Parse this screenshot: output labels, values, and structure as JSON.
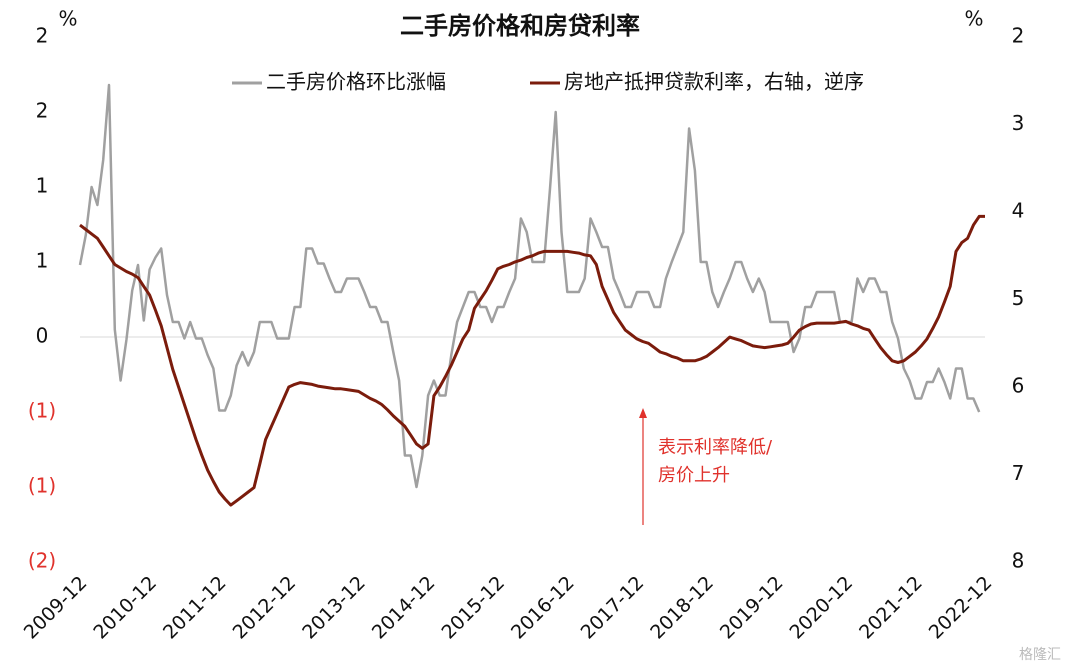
{
  "chart_data": {
    "type": "line",
    "title": "二手房价格和房贷利率",
    "y_unit": "%",
    "y2_unit": "%",
    "categories": [
      "2009-12",
      null,
      null,
      null,
      null,
      null,
      null,
      null,
      null,
      null,
      null,
      null,
      "2010-12",
      null,
      null,
      null,
      null,
      null,
      null,
      null,
      null,
      null,
      null,
      null,
      "2011-12",
      null,
      null,
      null,
      null,
      null,
      null,
      null,
      null,
      null,
      null,
      null,
      "2012-12",
      null,
      null,
      null,
      null,
      null,
      null,
      null,
      null,
      null,
      null,
      null,
      "2013-12",
      null,
      null,
      null,
      null,
      null,
      null,
      null,
      null,
      null,
      null,
      null,
      "2014-12",
      null,
      null,
      null,
      null,
      null,
      null,
      null,
      null,
      null,
      null,
      null,
      "2015-12",
      null,
      null,
      null,
      null,
      null,
      null,
      null,
      null,
      null,
      null,
      null,
      "2016-12",
      null,
      null,
      null,
      null,
      null,
      null,
      null,
      null,
      null,
      null,
      null,
      "2017-12",
      null,
      null,
      null,
      null,
      null,
      null,
      null,
      null,
      null,
      null,
      null,
      "2018-12",
      null,
      null,
      null,
      null,
      null,
      null,
      null,
      null,
      null,
      null,
      null,
      "2019-12",
      null,
      null,
      null,
      null,
      null,
      null,
      null,
      null,
      null,
      null,
      null,
      "2020-12",
      null,
      null,
      null,
      null,
      null,
      null,
      null,
      null,
      null,
      null,
      null,
      "2021-12",
      null,
      null,
      null,
      null,
      null,
      null,
      null,
      null,
      null,
      null,
      null,
      "2022-12"
    ],
    "series": [
      {
        "name": "二手房价格环比涨幅",
        "color": "#a0a0a0",
        "axis": "y",
        "values": [
          0.48,
          0.68,
          1.0,
          0.88,
          1.18,
          1.68,
          0.05,
          -0.29,
          -0.02,
          0.31,
          0.48,
          0.11,
          0.45,
          0.53,
          0.59,
          0.28,
          0.1,
          0.1,
          -0.01,
          0.1,
          -0.01,
          -0.01,
          -0.12,
          -0.21,
          -0.49,
          -0.49,
          -0.39,
          -0.19,
          -0.1,
          -0.19,
          -0.1,
          0.1,
          0.1,
          0.1,
          -0.01,
          -0.01,
          -0.01,
          0.2,
          0.2,
          0.59,
          0.59,
          0.49,
          0.49,
          0.39,
          0.3,
          0.3,
          0.39,
          0.39,
          0.39,
          0.3,
          0.2,
          0.2,
          0.1,
          0.1,
          -0.1,
          -0.29,
          -0.79,
          -0.79,
          -1.0,
          -0.79,
          -0.39,
          -0.29,
          -0.39,
          -0.39,
          -0.12,
          0.1,
          0.2,
          0.3,
          0.3,
          0.2,
          0.2,
          0.1,
          0.2,
          0.2,
          0.3,
          0.39,
          0.79,
          0.7,
          0.5,
          0.5,
          0.5,
          0.98,
          1.5,
          0.7,
          0.3,
          0.3,
          0.3,
          0.39,
          0.79,
          0.7,
          0.6,
          0.6,
          0.39,
          0.3,
          0.2,
          0.2,
          0.3,
          0.3,
          0.3,
          0.2,
          0.2,
          0.39,
          0.5,
          0.6,
          0.7,
          1.39,
          1.11,
          0.5,
          0.5,
          0.3,
          0.2,
          0.3,
          0.39,
          0.5,
          0.5,
          0.39,
          0.3,
          0.39,
          0.3,
          0.1,
          0.1,
          0.1,
          0.1,
          -0.1,
          -0.01,
          0.2,
          0.2,
          0.3,
          0.3,
          0.3,
          0.3,
          0.1,
          0.1,
          0.1,
          0.39,
          0.3,
          0.39,
          0.39,
          0.3,
          0.3,
          0.1,
          -0.01,
          -0.21,
          -0.29,
          -0.41,
          -0.41,
          -0.3,
          -0.3,
          -0.21,
          -0.3,
          -0.41,
          -0.21,
          -0.21,
          -0.41,
          -0.41,
          -0.5,
          null
        ]
      },
      {
        "name": "房地产抵押贷款利率，右轴，逆序",
        "color": "#7b1c0c",
        "axis": "y2",
        "values": [
          4.15,
          4.2,
          4.25,
          4.3,
          4.4,
          4.5,
          4.6,
          4.64,
          4.68,
          4.71,
          4.75,
          4.85,
          4.95,
          5.12,
          5.3,
          5.55,
          5.8,
          6.0,
          6.2,
          6.4,
          6.6,
          6.78,
          6.95,
          7.08,
          7.2,
          7.28,
          7.35,
          7.3,
          7.25,
          7.2,
          7.15,
          6.88,
          6.6,
          6.45,
          6.3,
          6.15,
          6.0,
          5.97,
          5.95,
          5.96,
          5.97,
          5.99,
          6.0,
          6.01,
          6.02,
          6.02,
          6.03,
          6.04,
          6.05,
          6.09,
          6.13,
          6.16,
          6.2,
          6.26,
          6.33,
          6.39,
          6.45,
          6.55,
          6.65,
          6.7,
          6.65,
          6.1,
          6.0,
          5.88,
          5.75,
          5.6,
          5.45,
          5.35,
          5.1,
          5.0,
          4.9,
          4.78,
          4.65,
          4.62,
          4.6,
          4.57,
          4.55,
          4.52,
          4.5,
          4.47,
          4.45,
          4.45,
          4.45,
          4.45,
          4.45,
          4.46,
          4.47,
          4.49,
          4.5,
          4.6,
          4.85,
          5.0,
          5.15,
          5.25,
          5.35,
          5.4,
          5.45,
          5.48,
          5.5,
          5.55,
          5.6,
          5.62,
          5.65,
          5.67,
          5.7,
          5.7,
          5.7,
          5.68,
          5.65,
          5.6,
          5.55,
          5.49,
          5.43,
          5.45,
          5.47,
          5.5,
          5.53,
          5.54,
          5.55,
          5.54,
          5.53,
          5.52,
          5.5,
          5.43,
          5.35,
          5.31,
          5.28,
          5.27,
          5.27,
          5.27,
          5.27,
          5.26,
          5.25,
          5.28,
          5.3,
          5.33,
          5.35,
          5.45,
          5.55,
          5.63,
          5.7,
          5.72,
          5.7,
          5.65,
          5.6,
          5.53,
          5.45,
          5.33,
          5.2,
          5.03,
          4.85,
          4.45,
          4.35,
          4.3,
          4.15,
          4.05,
          4.05
        ]
      }
    ],
    "ylim": [
      -1.5,
      2
    ],
    "yticks": [
      2,
      {
        "value": 1.5,
        "label": "2"
      },
      1,
      {
        "value": 0.5,
        "label": "1"
      },
      0,
      {
        "value": -0.5,
        "label": "(1)"
      },
      {
        "value": -1,
        "label": "(1)"
      },
      {
        "value": -1.5,
        "label": "(2)"
      }
    ],
    "y2lim": [
      8,
      2
    ],
    "y2ticks": [
      2,
      3,
      4,
      5,
      6,
      7,
      8
    ],
    "negative_label_color": "#e0322c",
    "legend": "top",
    "annotation": {
      "lines": [
        "表示利率降低/",
        "房价上升"
      ],
      "color": "#e0322c"
    },
    "watermark": "格隆汇"
  }
}
